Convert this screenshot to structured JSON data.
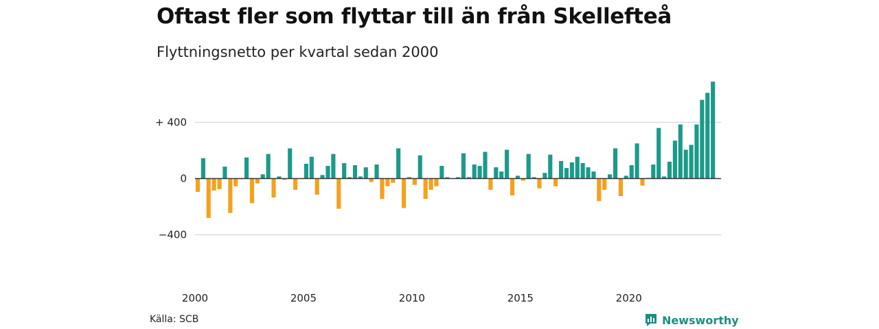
{
  "title": "Oftast fler som flyttar till än från Skellefteå",
  "subtitle": "Flyttningsnetto per kvartal sedan 2000",
  "source": "Källa: SCB",
  "logo": {
    "text": "Newsworthy",
    "icon": "newsworthy-logo-icon"
  },
  "colors": {
    "positive": "#1c9a8a",
    "negative": "#f5a11c",
    "grid": "#dddddd",
    "axis": "#333333",
    "brand": "#1c8f82"
  },
  "chart_data": {
    "type": "bar",
    "title": "Oftast fler som flyttar till än från Skellefteå",
    "subtitle": "Flyttningsnetto per kvartal sedan 2000",
    "xlabel": "",
    "ylabel": "",
    "ylim": [
      -600,
      720
    ],
    "yticks": [
      {
        "value": 400,
        "label": "+ 400"
      },
      {
        "value": 0,
        "label": "0"
      },
      {
        "value": -400,
        "label": "−400"
      }
    ],
    "xticks": [
      "2000",
      "2005",
      "2010",
      "2015",
      "2020"
    ],
    "grid": true,
    "categories": [
      "2000 Q1",
      "2000 Q2",
      "2000 Q3",
      "2000 Q4",
      "2001 Q1",
      "2001 Q2",
      "2001 Q3",
      "2001 Q4",
      "2002 Q1",
      "2002 Q2",
      "2002 Q3",
      "2002 Q4",
      "2003 Q1",
      "2003 Q2",
      "2003 Q3",
      "2003 Q4",
      "2004 Q1",
      "2004 Q2",
      "2004 Q3",
      "2004 Q4",
      "2005 Q1",
      "2005 Q2",
      "2005 Q3",
      "2005 Q4",
      "2006 Q1",
      "2006 Q2",
      "2006 Q3",
      "2006 Q4",
      "2007 Q1",
      "2007 Q2",
      "2007 Q3",
      "2007 Q4",
      "2008 Q1",
      "2008 Q2",
      "2008 Q3",
      "2008 Q4",
      "2009 Q1",
      "2009 Q2",
      "2009 Q3",
      "2009 Q4",
      "2010 Q1",
      "2010 Q2",
      "2010 Q3",
      "2010 Q4",
      "2011 Q1",
      "2011 Q2",
      "2011 Q3",
      "2011 Q4",
      "2012 Q1",
      "2012 Q2",
      "2012 Q3",
      "2012 Q4",
      "2013 Q1",
      "2013 Q2",
      "2013 Q3",
      "2013 Q4",
      "2014 Q1",
      "2014 Q2",
      "2014 Q3",
      "2014 Q4",
      "2015 Q1",
      "2015 Q2",
      "2015 Q3",
      "2015 Q4",
      "2016 Q1",
      "2016 Q2",
      "2016 Q3",
      "2016 Q4",
      "2017 Q1",
      "2017 Q2",
      "2017 Q3",
      "2017 Q4",
      "2018 Q1",
      "2018 Q2",
      "2018 Q3",
      "2018 Q4",
      "2019 Q1",
      "2019 Q2",
      "2019 Q3",
      "2019 Q4",
      "2020 Q1",
      "2020 Q2",
      "2020 Q3",
      "2020 Q4",
      "2021 Q1",
      "2021 Q2",
      "2021 Q3",
      "2021 Q4",
      "2022 Q1",
      "2022 Q2",
      "2022 Q3",
      "2022 Q4",
      "2023 Q1",
      "2023 Q2",
      "2023 Q3",
      "2023 Q4",
      "2024 Q1"
    ],
    "values": [
      -95,
      145,
      -280,
      -85,
      -75,
      85,
      -245,
      -55,
      -5,
      150,
      -175,
      -35,
      30,
      175,
      -135,
      15,
      -10,
      215,
      -80,
      0,
      105,
      155,
      -115,
      25,
      90,
      175,
      -215,
      110,
      10,
      95,
      15,
      80,
      -25,
      100,
      -145,
      -55,
      -30,
      215,
      -210,
      10,
      -45,
      165,
      -145,
      -80,
      -55,
      90,
      10,
      0,
      10,
      180,
      10,
      100,
      90,
      190,
      -80,
      80,
      50,
      205,
      -120,
      20,
      -15,
      175,
      10,
      -70,
      40,
      170,
      -55,
      125,
      75,
      115,
      155,
      110,
      80,
      50,
      -160,
      -80,
      30,
      215,
      -125,
      20,
      95,
      250,
      -50,
      5,
      100,
      360,
      15,
      120,
      270,
      385,
      205,
      240,
      385,
      560,
      610,
      690,
      0
    ]
  }
}
